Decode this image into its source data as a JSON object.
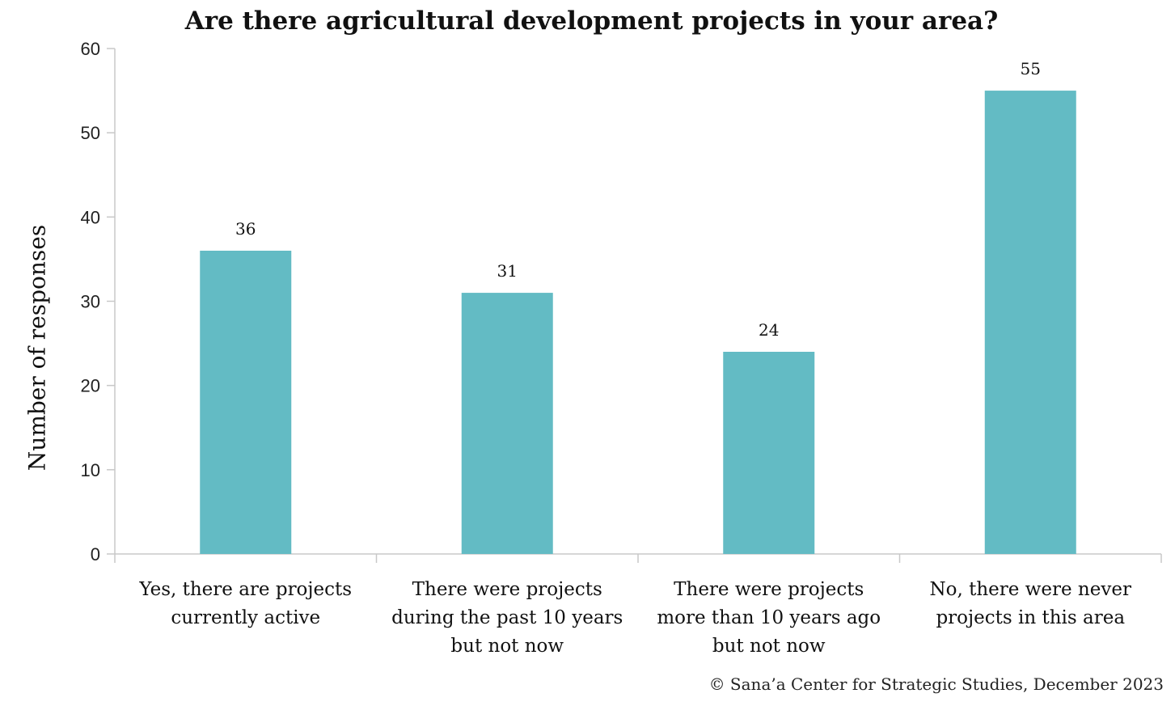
{
  "chart_data": {
    "type": "bar",
    "title": "Are there agricultural development projects in your area?",
    "xlabel": "",
    "ylabel": "Number of responses",
    "categories": [
      "Yes, there are projects currently active",
      "There were projects during the past 10 years but not now",
      "There were projects more than 10 years ago but not now",
      "No, there were never projects in this area"
    ],
    "values": [
      36,
      31,
      24,
      55
    ],
    "ylim": [
      0,
      60
    ],
    "yticks": [
      0,
      10,
      20,
      30,
      40,
      50,
      60
    ],
    "bar_color": "#63bbc4",
    "grid": false,
    "legend": "none"
  },
  "source": "© Sana’a Center for Strategic Studies, December 2023"
}
